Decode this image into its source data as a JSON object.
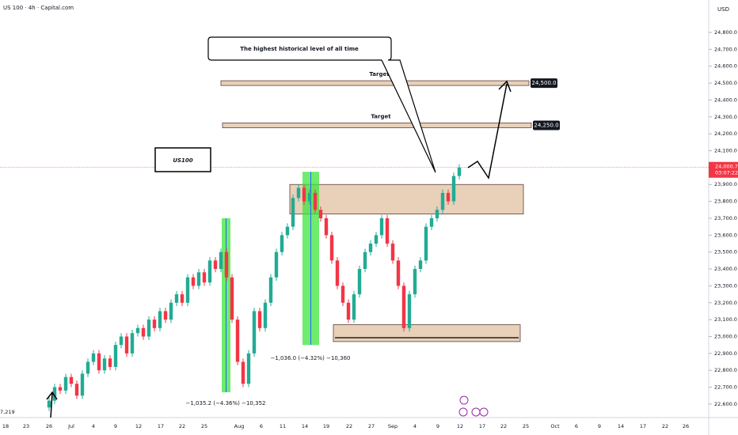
{
  "header": {
    "symbol": "US 100 · 4h · Capital.com",
    "currency": "USD"
  },
  "chart_data": {
    "type": "candlestick",
    "colors": {
      "up": "#22ab94",
      "down": "#f23645"
    },
    "ylim": [
      22520,
      24992
    ],
    "yticks": [
      {
        "value": 24800,
        "label": "24,800.0"
      },
      {
        "value": 24700,
        "label": "24,700.0"
      },
      {
        "value": 24600,
        "label": "24,600.0"
      },
      {
        "value": 24500,
        "label": "24,500.0"
      },
      {
        "value": 24400,
        "label": "24,400.0"
      },
      {
        "value": 24300,
        "label": "24,300.0"
      },
      {
        "value": 24200,
        "label": "24,200.0"
      },
      {
        "value": 24100,
        "label": "24,100.0"
      },
      {
        "value": 24000,
        "label": "24,000.0"
      },
      {
        "value": 23900,
        "label": "23,900.0"
      },
      {
        "value": 23800,
        "label": "23,800.0"
      },
      {
        "value": 23700,
        "label": "23,700.0"
      },
      {
        "value": 23600,
        "label": "23,600.0"
      },
      {
        "value": 23500,
        "label": "23,500.0"
      },
      {
        "value": 23400,
        "label": "23,400.0"
      },
      {
        "value": 23300,
        "label": "23,300.0"
      },
      {
        "value": 23200,
        "label": "23,200.0"
      },
      {
        "value": 23100,
        "label": "23,100.0"
      },
      {
        "value": 23000,
        "label": "23,000.0"
      },
      {
        "value": 22900,
        "label": "22,900.0"
      },
      {
        "value": 22800,
        "label": "22,800.0"
      },
      {
        "value": 22700,
        "label": "22,700.0"
      },
      {
        "value": 22600,
        "label": "22,600.0"
      }
    ],
    "date_labels": [
      "18",
      "23",
      "26",
      "Jul",
      "4",
      "9",
      "12",
      "17",
      "22",
      "25",
      "Aug",
      "6",
      "11",
      "14",
      "19",
      "22",
      "27",
      "Sep",
      "4",
      "9",
      "12",
      "17",
      "22",
      "25",
      "Oct",
      "6",
      "9",
      "14",
      "17",
      "22",
      "26"
    ],
    "candles": [
      [
        22580,
        22640,
        22560,
        22620
      ],
      [
        22620,
        22720,
        22600,
        22700
      ],
      [
        22700,
        22720,
        22660,
        22680
      ],
      [
        22680,
        22780,
        22660,
        22760
      ],
      [
        22760,
        22780,
        22700,
        22720
      ],
      [
        22720,
        22740,
        22630,
        22650
      ],
      [
        22650,
        22800,
        22630,
        22780
      ],
      [
        22780,
        22870,
        22760,
        22850
      ],
      [
        22850,
        22920,
        22830,
        22900
      ],
      [
        22900,
        22920,
        22780,
        22800
      ],
      [
        22800,
        22890,
        22780,
        22870
      ],
      [
        22870,
        22890,
        22800,
        22820
      ],
      [
        22820,
        22970,
        22800,
        22950
      ],
      [
        22950,
        23020,
        22930,
        23000
      ],
      [
        23000,
        23020,
        22880,
        22900
      ],
      [
        22900,
        23040,
        22880,
        23020
      ],
      [
        23020,
        23070,
        23000,
        23050
      ],
      [
        23050,
        23070,
        22980,
        23000
      ],
      [
        23000,
        23120,
        22980,
        23100
      ],
      [
        23100,
        23120,
        23030,
        23050
      ],
      [
        23050,
        23170,
        23030,
        23150
      ],
      [
        23150,
        23170,
        23080,
        23100
      ],
      [
        23100,
        23220,
        23080,
        23200
      ],
      [
        23200,
        23270,
        23180,
        23250
      ],
      [
        23250,
        23270,
        23180,
        23200
      ],
      [
        23200,
        23370,
        23180,
        23350
      ],
      [
        23350,
        23370,
        23280,
        23300
      ],
      [
        23300,
        23400,
        23280,
        23380
      ],
      [
        23380,
        23400,
        23300,
        23320
      ],
      [
        23320,
        23470,
        23300,
        23450
      ],
      [
        23450,
        23470,
        23380,
        23400
      ],
      [
        23400,
        23520,
        23380,
        23500
      ],
      [
        23500,
        23520,
        23330,
        23350
      ],
      [
        23350,
        23370,
        23080,
        23100
      ],
      [
        23100,
        23120,
        22830,
        22850
      ],
      [
        22850,
        22870,
        22700,
        22720
      ],
      [
        22720,
        22920,
        22700,
        22900
      ],
      [
        22900,
        23170,
        22880,
        23150
      ],
      [
        23150,
        23170,
        23030,
        23050
      ],
      [
        23050,
        23220,
        23030,
        23200
      ],
      [
        23200,
        23370,
        23180,
        23350
      ],
      [
        23350,
        23520,
        23330,
        23500
      ],
      [
        23500,
        23620,
        23480,
        23600
      ],
      [
        23600,
        23670,
        23580,
        23650
      ],
      [
        23650,
        23840,
        23630,
        23820
      ],
      [
        23820,
        23900,
        23800,
        23880
      ],
      [
        23880,
        23900,
        23780,
        23800
      ],
      [
        23800,
        23870,
        23780,
        23850
      ],
      [
        23850,
        23870,
        23730,
        23750
      ],
      [
        23750,
        23770,
        23680,
        23700
      ],
      [
        23700,
        23720,
        23580,
        23600
      ],
      [
        23600,
        23620,
        23430,
        23450
      ],
      [
        23450,
        23470,
        23280,
        23300
      ],
      [
        23300,
        23320,
        23180,
        23200
      ],
      [
        23200,
        23220,
        23080,
        23100
      ],
      [
        23100,
        23270,
        23080,
        23250
      ],
      [
        23250,
        23420,
        23230,
        23400
      ],
      [
        23400,
        23520,
        23380,
        23500
      ],
      [
        23500,
        23570,
        23480,
        23550
      ],
      [
        23550,
        23620,
        23530,
        23600
      ],
      [
        23600,
        23720,
        23580,
        23700
      ],
      [
        23700,
        23720,
        23530,
        23550
      ],
      [
        23550,
        23570,
        23430,
        23450
      ],
      [
        23450,
        23470,
        23280,
        23300
      ],
      [
        23300,
        23320,
        23030,
        23050
      ],
      [
        23050,
        23270,
        23030,
        23250
      ],
      [
        23250,
        23420,
        23230,
        23400
      ],
      [
        23400,
        23470,
        23380,
        23450
      ],
      [
        23450,
        23670,
        23430,
        23650
      ],
      [
        23650,
        23720,
        23630,
        23700
      ],
      [
        23700,
        23770,
        23680,
        23750
      ],
      [
        23750,
        23870,
        23730,
        23850
      ],
      [
        23850,
        23870,
        23780,
        23800
      ],
      [
        23800,
        23970,
        23780,
        23950
      ],
      [
        23950,
        24020,
        23930,
        24000
      ]
    ],
    "zones": [
      {
        "top": 23900,
        "bottom": 23725
      },
      {
        "top": 23070,
        "bottom": 22970
      }
    ],
    "targets": [
      {
        "label": "Target",
        "value": 24500,
        "value_label": "24,500.0"
      },
      {
        "label": "Target",
        "value": 24250,
        "value_label": "24,250.0"
      }
    ],
    "measurements": [
      {
        "from": 23700,
        "to": 22670,
        "text": "−1,035.2 (−4.36%) −10,352"
      },
      {
        "from": 23975,
        "to": 22950,
        "text": "−1,036.0 (−4.32%) −10,360"
      }
    ],
    "current_price": {
      "value": 24000.7,
      "label": "24,000.7",
      "countdown": "03:07:22"
    },
    "symbol_label": "US100",
    "callout": "The highest historical level of all time",
    "left_label": "7,219"
  }
}
